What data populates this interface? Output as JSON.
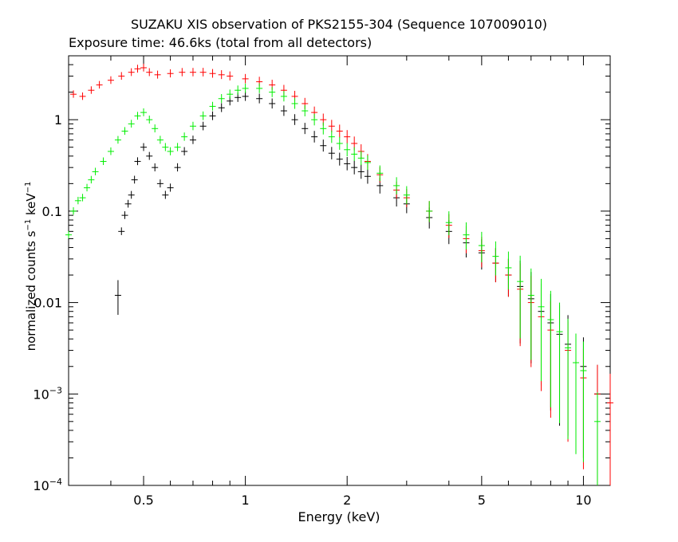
{
  "chart_data": {
    "type": "scatter",
    "title": "SUZAKU XIS observation of PKS2155-304 (Sequence 107009010)",
    "subtitle": "Exposure time: 46.6ks (total from all detectors)",
    "xlabel": "Energy (keV)",
    "ylabel_main": "normalized counts s",
    "ylabel_unit": "keV",
    "ylabel_exp": "−1",
    "xscale": "log",
    "yscale": "log",
    "xlim": [
      0.3,
      12
    ],
    "ylim": [
      0.0001,
      5
    ],
    "xticks": [
      {
        "value": 0.5,
        "label": "0.5"
      },
      {
        "value": 1,
        "label": "1"
      },
      {
        "value": 2,
        "label": "2"
      },
      {
        "value": 5,
        "label": "5"
      },
      {
        "value": 10,
        "label": "10"
      }
    ],
    "yticks": [
      {
        "value": 1,
        "label": "1"
      },
      {
        "value": 0.1,
        "label": "0.1"
      },
      {
        "value": 0.01,
        "label": "0.01"
      },
      {
        "value": 0.001,
        "base": "10",
        "exp": "−3"
      },
      {
        "value": 0.0001,
        "base": "10",
        "exp": "−4"
      }
    ],
    "series": [
      {
        "color": "#000000",
        "points": [
          [
            0.42,
            0.012
          ],
          [
            0.43,
            0.06
          ],
          [
            0.44,
            0.09
          ],
          [
            0.45,
            0.12
          ],
          [
            0.46,
            0.15
          ],
          [
            0.47,
            0.22
          ],
          [
            0.48,
            0.35
          ],
          [
            0.5,
            0.5
          ],
          [
            0.52,
            0.4
          ],
          [
            0.54,
            0.3
          ],
          [
            0.56,
            0.2
          ],
          [
            0.58,
            0.15
          ],
          [
            0.6,
            0.18
          ],
          [
            0.63,
            0.3
          ],
          [
            0.66,
            0.45
          ],
          [
            0.7,
            0.6
          ],
          [
            0.75,
            0.85
          ],
          [
            0.8,
            1.1
          ],
          [
            0.85,
            1.35
          ],
          [
            0.9,
            1.6
          ],
          [
            0.95,
            1.75
          ],
          [
            1.0,
            1.8
          ],
          [
            1.1,
            1.7
          ],
          [
            1.2,
            1.5
          ],
          [
            1.3,
            1.25
          ],
          [
            1.4,
            1.0
          ],
          [
            1.5,
            0.8
          ],
          [
            1.6,
            0.65
          ],
          [
            1.7,
            0.52
          ],
          [
            1.8,
            0.43
          ],
          [
            1.9,
            0.37
          ],
          [
            2.0,
            0.33
          ],
          [
            2.1,
            0.3
          ],
          [
            2.2,
            0.27
          ],
          [
            2.3,
            0.24
          ],
          [
            2.5,
            0.19
          ],
          [
            2.8,
            0.14
          ],
          [
            3.0,
            0.12
          ],
          [
            3.5,
            0.085
          ],
          [
            4.0,
            0.06
          ],
          [
            4.5,
            0.045
          ],
          [
            5.0,
            0.035
          ],
          [
            5.5,
            0.027
          ],
          [
            6.0,
            0.02
          ],
          [
            6.5,
            0.015
          ],
          [
            7.0,
            0.011
          ],
          [
            7.5,
            0.008
          ],
          [
            8.0,
            0.006
          ],
          [
            8.5,
            0.0045
          ],
          [
            9.0,
            0.0035
          ],
          [
            10.0,
            0.002
          ],
          [
            11.0,
            0.001
          ]
        ]
      },
      {
        "color": "#ff0000",
        "points": [
          [
            0.31,
            1.9
          ],
          [
            0.33,
            1.8
          ],
          [
            0.35,
            2.1
          ],
          [
            0.37,
            2.4
          ],
          [
            0.4,
            2.7
          ],
          [
            0.43,
            3.0
          ],
          [
            0.46,
            3.3
          ],
          [
            0.48,
            3.6
          ],
          [
            0.5,
            3.7
          ],
          [
            0.52,
            3.3
          ],
          [
            0.55,
            3.1
          ],
          [
            0.6,
            3.2
          ],
          [
            0.65,
            3.3
          ],
          [
            0.7,
            3.3
          ],
          [
            0.75,
            3.3
          ],
          [
            0.8,
            3.2
          ],
          [
            0.85,
            3.1
          ],
          [
            0.9,
            3.0
          ],
          [
            1.0,
            2.8
          ],
          [
            1.1,
            2.6
          ],
          [
            1.2,
            2.4
          ],
          [
            1.3,
            2.1
          ],
          [
            1.4,
            1.8
          ],
          [
            1.5,
            1.5
          ],
          [
            1.6,
            1.2
          ],
          [
            1.7,
            1.0
          ],
          [
            1.8,
            0.85
          ],
          [
            1.9,
            0.75
          ],
          [
            2.0,
            0.65
          ],
          [
            2.1,
            0.55
          ],
          [
            2.2,
            0.45
          ],
          [
            2.3,
            0.35
          ],
          [
            2.5,
            0.25
          ],
          [
            2.8,
            0.17
          ],
          [
            3.0,
            0.14
          ],
          [
            3.5,
            0.1
          ],
          [
            4.0,
            0.07
          ],
          [
            4.5,
            0.05
          ],
          [
            5.0,
            0.037
          ],
          [
            5.5,
            0.027
          ],
          [
            6.0,
            0.02
          ],
          [
            6.5,
            0.014
          ],
          [
            7.0,
            0.01
          ],
          [
            7.5,
            0.007
          ],
          [
            8.0,
            0.005
          ],
          [
            9.0,
            0.003
          ],
          [
            10.0,
            0.0015
          ],
          [
            11.0,
            0.001
          ],
          [
            12.0,
            0.0008
          ]
        ]
      },
      {
        "color": "#00ee00",
        "points": [
          [
            0.3,
            0.055
          ],
          [
            0.31,
            0.1
          ],
          [
            0.32,
            0.13
          ],
          [
            0.33,
            0.14
          ],
          [
            0.34,
            0.18
          ],
          [
            0.35,
            0.22
          ],
          [
            0.36,
            0.27
          ],
          [
            0.38,
            0.35
          ],
          [
            0.4,
            0.45
          ],
          [
            0.42,
            0.6
          ],
          [
            0.44,
            0.75
          ],
          [
            0.46,
            0.9
          ],
          [
            0.48,
            1.1
          ],
          [
            0.5,
            1.2
          ],
          [
            0.52,
            1.0
          ],
          [
            0.54,
            0.8
          ],
          [
            0.56,
            0.6
          ],
          [
            0.58,
            0.5
          ],
          [
            0.6,
            0.45
          ],
          [
            0.63,
            0.5
          ],
          [
            0.66,
            0.65
          ],
          [
            0.7,
            0.85
          ],
          [
            0.75,
            1.1
          ],
          [
            0.8,
            1.4
          ],
          [
            0.85,
            1.7
          ],
          [
            0.9,
            1.9
          ],
          [
            0.95,
            2.1
          ],
          [
            1.0,
            2.2
          ],
          [
            1.1,
            2.2
          ],
          [
            1.2,
            2.0
          ],
          [
            1.3,
            1.8
          ],
          [
            1.4,
            1.5
          ],
          [
            1.5,
            1.25
          ],
          [
            1.6,
            1.0
          ],
          [
            1.7,
            0.8
          ],
          [
            1.8,
            0.65
          ],
          [
            1.9,
            0.55
          ],
          [
            2.0,
            0.47
          ],
          [
            2.1,
            0.42
          ],
          [
            2.2,
            0.38
          ],
          [
            2.3,
            0.34
          ],
          [
            2.5,
            0.26
          ],
          [
            2.8,
            0.19
          ],
          [
            3.0,
            0.15
          ],
          [
            3.5,
            0.1
          ],
          [
            4.0,
            0.075
          ],
          [
            4.5,
            0.055
          ],
          [
            5.0,
            0.042
          ],
          [
            5.5,
            0.032
          ],
          [
            6.0,
            0.024
          ],
          [
            6.5,
            0.017
          ],
          [
            7.0,
            0.012
          ],
          [
            7.5,
            0.009
          ],
          [
            8.0,
            0.0065
          ],
          [
            8.5,
            0.0048
          ],
          [
            9.0,
            0.0032
          ],
          [
            9.5,
            0.0022
          ],
          [
            10.0,
            0.0018
          ],
          [
            11.0,
            0.0005
          ]
        ]
      }
    ]
  }
}
